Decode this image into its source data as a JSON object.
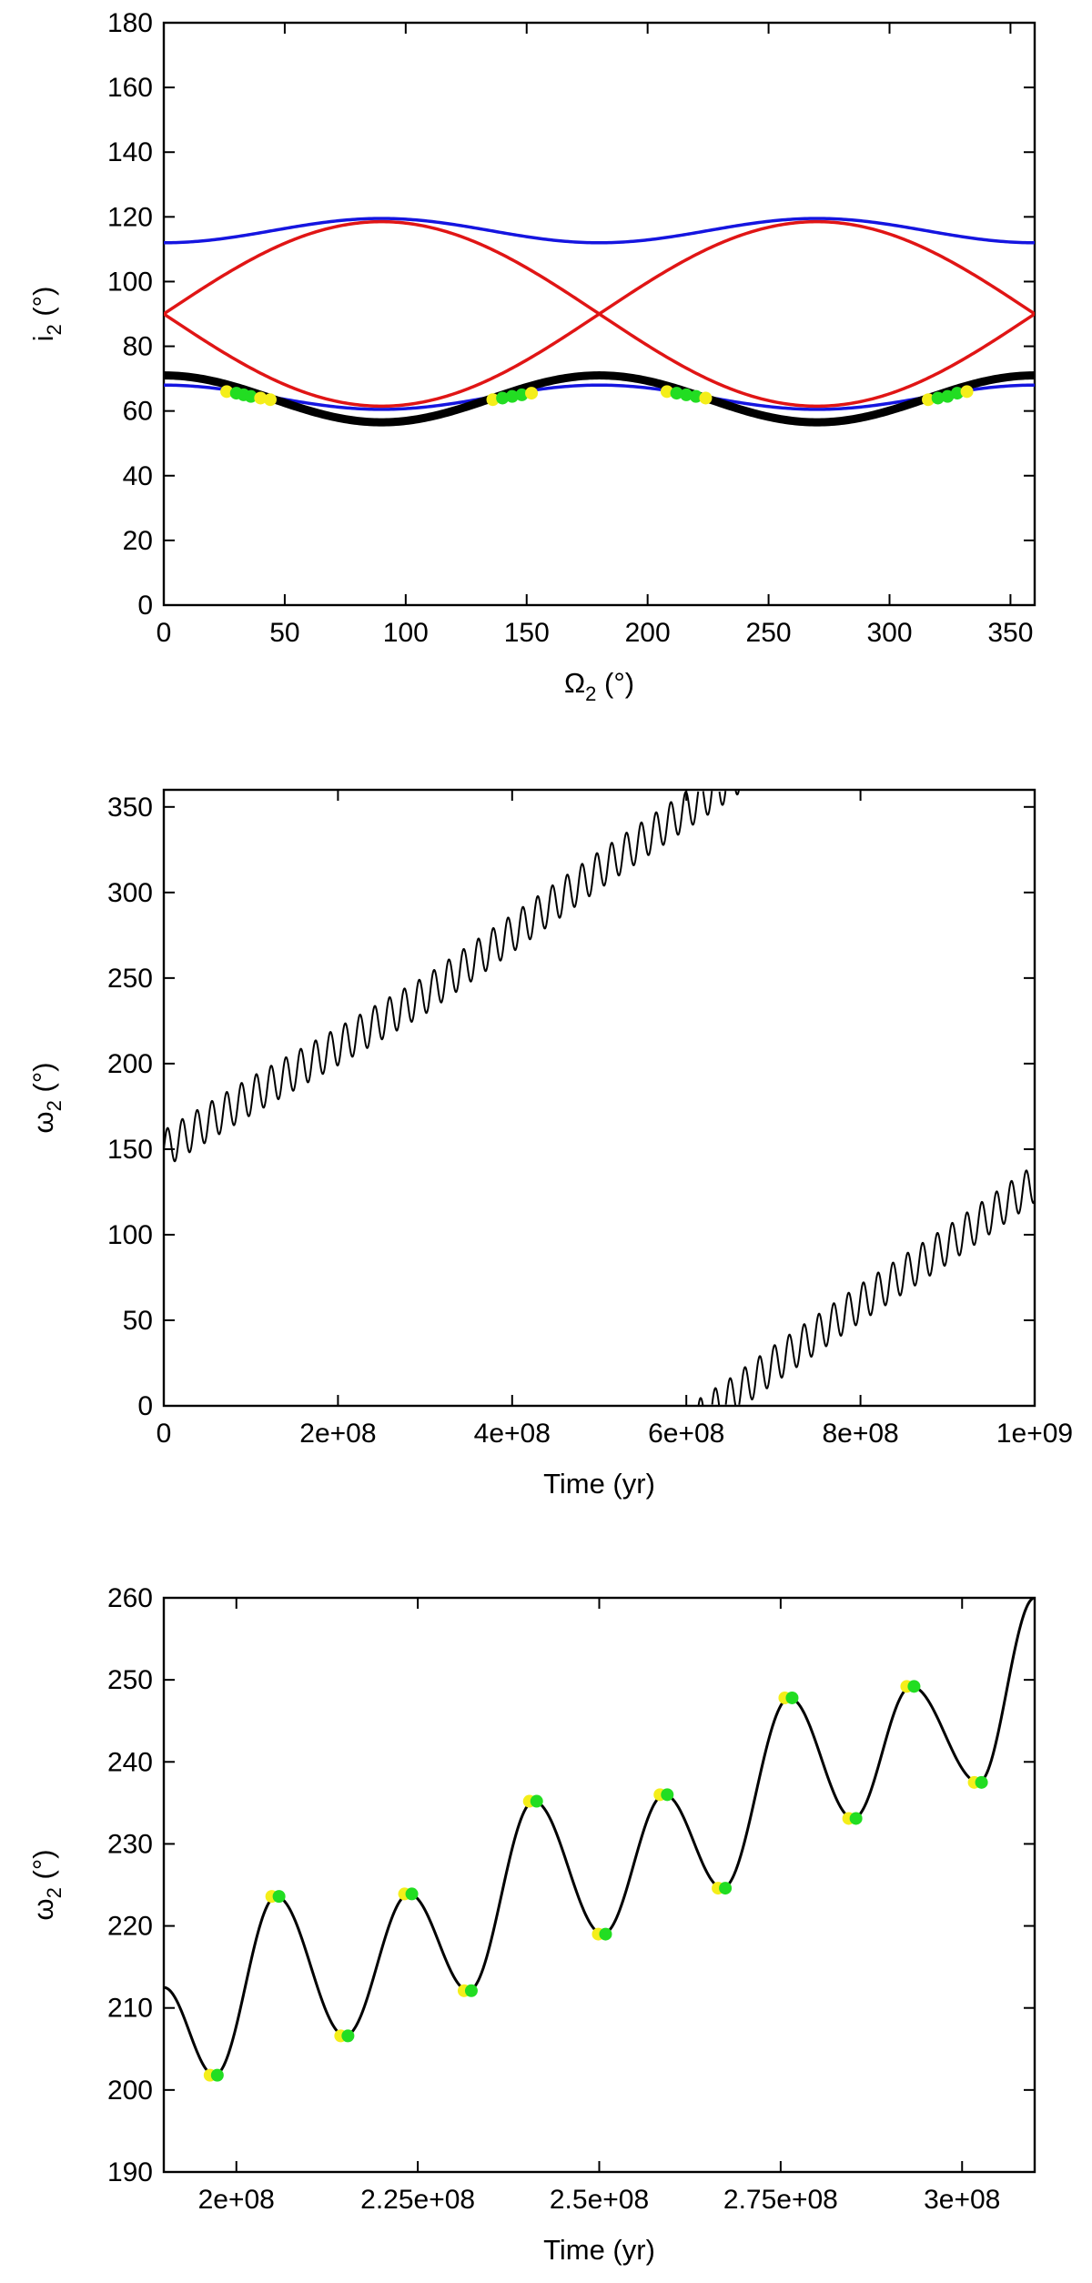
{
  "colors": {
    "background": "#ffffff",
    "axes": "#000000",
    "black_curve": "#000000",
    "blue_curve": "#1515e0",
    "red_curve": "#e01515",
    "marker_yellow": "#f4ee1a",
    "marker_green": "#22dd22"
  },
  "chart_data": [
    {
      "type": "line",
      "panel": "top",
      "xlabel": "Ω",
      "xlabel_sub": "2",
      "xlabel_unit": " (°)",
      "ylabel": "i",
      "ylabel_sub": "2",
      "ylabel_unit": " (°)",
      "xlim": [
        0,
        360
      ],
      "ylim": [
        0,
        180
      ],
      "xticks": [
        0,
        50,
        100,
        150,
        200,
        250,
        300,
        350
      ],
      "xtick_labels": [
        "0",
        "50",
        "100",
        "150",
        "200",
        "250",
        "300",
        "350"
      ],
      "yticks": [
        0,
        20,
        40,
        60,
        80,
        100,
        120,
        140,
        160,
        180
      ],
      "ytick_labels": [
        "0",
        "20",
        "40",
        "60",
        "80",
        "100",
        "120",
        "140",
        "160",
        "180"
      ],
      "grid": false,
      "legend": "none",
      "series": [
        {
          "color": "blue",
          "style": "thin line",
          "x": [
            0,
            45,
            90,
            135,
            180,
            225,
            270,
            315,
            360
          ],
          "y": [
            112,
            116.5,
            119.5,
            116.5,
            112,
            116.5,
            119.5,
            116.5,
            112
          ]
        },
        {
          "color": "blue",
          "style": "thin line",
          "x": [
            0,
            45,
            90,
            135,
            180,
            225,
            270,
            315,
            360
          ],
          "y": [
            68,
            63.5,
            60.5,
            63.5,
            68,
            63.5,
            60.5,
            63.5,
            68
          ]
        },
        {
          "color": "red",
          "style": "thin line",
          "x": [
            0,
            45,
            90,
            135,
            180,
            225,
            270,
            315,
            360
          ],
          "y": [
            90,
            110,
            118.5,
            110,
            90,
            70,
            61.5,
            70,
            90
          ]
        },
        {
          "color": "red",
          "style": "thin line",
          "x": [
            0,
            45,
            90,
            135,
            180,
            225,
            270,
            315,
            360
          ],
          "y": [
            90,
            70,
            61.5,
            70,
            90,
            110,
            118.5,
            110,
            90
          ]
        },
        {
          "color": "black",
          "style": "thick band",
          "x": [
            0,
            45,
            90,
            135,
            180,
            225,
            270,
            315,
            360
          ],
          "y": [
            71,
            63,
            56.5,
            63,
            71,
            63,
            56.5,
            63,
            71
          ]
        }
      ],
      "markers": [
        {
          "x": 26,
          "y": 66,
          "color": "yellow"
        },
        {
          "x": 30,
          "y": 65.5,
          "color": "green"
        },
        {
          "x": 33,
          "y": 65,
          "color": "green"
        },
        {
          "x": 36,
          "y": 64.5,
          "color": "green"
        },
        {
          "x": 40,
          "y": 64,
          "color": "yellow"
        },
        {
          "x": 44,
          "y": 63.5,
          "color": "yellow"
        },
        {
          "x": 136,
          "y": 63.5,
          "color": "yellow"
        },
        {
          "x": 140,
          "y": 64,
          "color": "green"
        },
        {
          "x": 144,
          "y": 64.5,
          "color": "green"
        },
        {
          "x": 148,
          "y": 65,
          "color": "green"
        },
        {
          "x": 152,
          "y": 65.5,
          "color": "yellow"
        },
        {
          "x": 208,
          "y": 66,
          "color": "yellow"
        },
        {
          "x": 212,
          "y": 65.5,
          "color": "green"
        },
        {
          "x": 216,
          "y": 65,
          "color": "green"
        },
        {
          "x": 220,
          "y": 64.5,
          "color": "green"
        },
        {
          "x": 224,
          "y": 64,
          "color": "yellow"
        },
        {
          "x": 316,
          "y": 63.5,
          "color": "yellow"
        },
        {
          "x": 320,
          "y": 64,
          "color": "green"
        },
        {
          "x": 324,
          "y": 64.5,
          "color": "green"
        },
        {
          "x": 328,
          "y": 65.5,
          "color": "green"
        },
        {
          "x": 332,
          "y": 66,
          "color": "yellow"
        }
      ]
    },
    {
      "type": "line",
      "panel": "middle",
      "xlabel": "Time (yr)",
      "ylabel": "ω",
      "ylabel_sub": "2",
      "ylabel_unit": " (°)",
      "xlim": [
        0,
        1000000000
      ],
      "ylim": [
        0,
        360
      ],
      "xticks": [
        0,
        200000000,
        400000000,
        600000000,
        800000000,
        1000000000
      ],
      "xtick_labels": [
        "0",
        "2e+08",
        "4e+08",
        "6e+08",
        "8e+08",
        "1e+09"
      ],
      "yticks": [
        0,
        50,
        100,
        150,
        200,
        250,
        300,
        350
      ],
      "ytick_labels": [
        "0",
        "50",
        "100",
        "150",
        "200",
        "250",
        "300",
        "350"
      ],
      "grid": false,
      "legend": "none",
      "series": [
        {
          "color": "black",
          "style": "thin oscillating line, wraps 360° to 0°",
          "trend_x": [
            0,
            100000000,
            200000000,
            300000000,
            400000000,
            500000000,
            600000000,
            650000000,
            700000000,
            800000000,
            900000000,
            1000000000
          ],
          "trend_y": [
            150,
            181,
            210,
            240,
            276,
            313,
            348,
            365,
            384,
            420,
            454,
            490
          ],
          "oscillation_period_yr": 17000000,
          "oscillation_amplitude_deg": 11
        }
      ]
    },
    {
      "type": "line",
      "panel": "bottom",
      "xlabel": "Time (yr)",
      "ylabel": "ω",
      "ylabel_sub": "2",
      "ylabel_unit": " (°)",
      "xlim": [
        190000000,
        310000000
      ],
      "ylim": [
        190,
        260
      ],
      "xticks": [
        200000000,
        225000000,
        250000000,
        275000000,
        300000000
      ],
      "xtick_labels": [
        "2e+08",
        "2.25e+08",
        "2.5e+08",
        "2.75e+08",
        "3e+08"
      ],
      "yticks": [
        190,
        200,
        210,
        220,
        230,
        240,
        250,
        260
      ],
      "ytick_labels": [
        "190",
        "200",
        "210",
        "220",
        "230",
        "240",
        "250",
        "260"
      ],
      "grid": false,
      "legend": "none",
      "series": [
        {
          "color": "black",
          "style": "thin line",
          "x": [
            190000000,
            197000000,
            205500000,
            215000000,
            223800000,
            232000000,
            241000000,
            250500000,
            259000000,
            267000000,
            276200000,
            285000000,
            293000000,
            302300000,
            310000000
          ],
          "y": [
            212.5,
            201.8,
            223.6,
            206.6,
            223.9,
            212.1,
            235.2,
            219.0,
            236.0,
            224.6,
            247.8,
            233.1,
            249.2,
            237.5,
            260
          ]
        }
      ],
      "markers": [
        {
          "x": 197000000,
          "y": 201.8
        },
        {
          "x": 205500000,
          "y": 223.6
        },
        {
          "x": 215000000,
          "y": 206.6
        },
        {
          "x": 223800000,
          "y": 223.9
        },
        {
          "x": 232000000,
          "y": 212.1
        },
        {
          "x": 241000000,
          "y": 235.2
        },
        {
          "x": 250500000,
          "y": 219.0
        },
        {
          "x": 259000000,
          "y": 236.0
        },
        {
          "x": 267000000,
          "y": 224.6
        },
        {
          "x": 276200000,
          "y": 247.8
        },
        {
          "x": 285000000,
          "y": 233.1
        },
        {
          "x": 293000000,
          "y": 249.2
        },
        {
          "x": 302300000,
          "y": 237.5
        }
      ]
    }
  ]
}
